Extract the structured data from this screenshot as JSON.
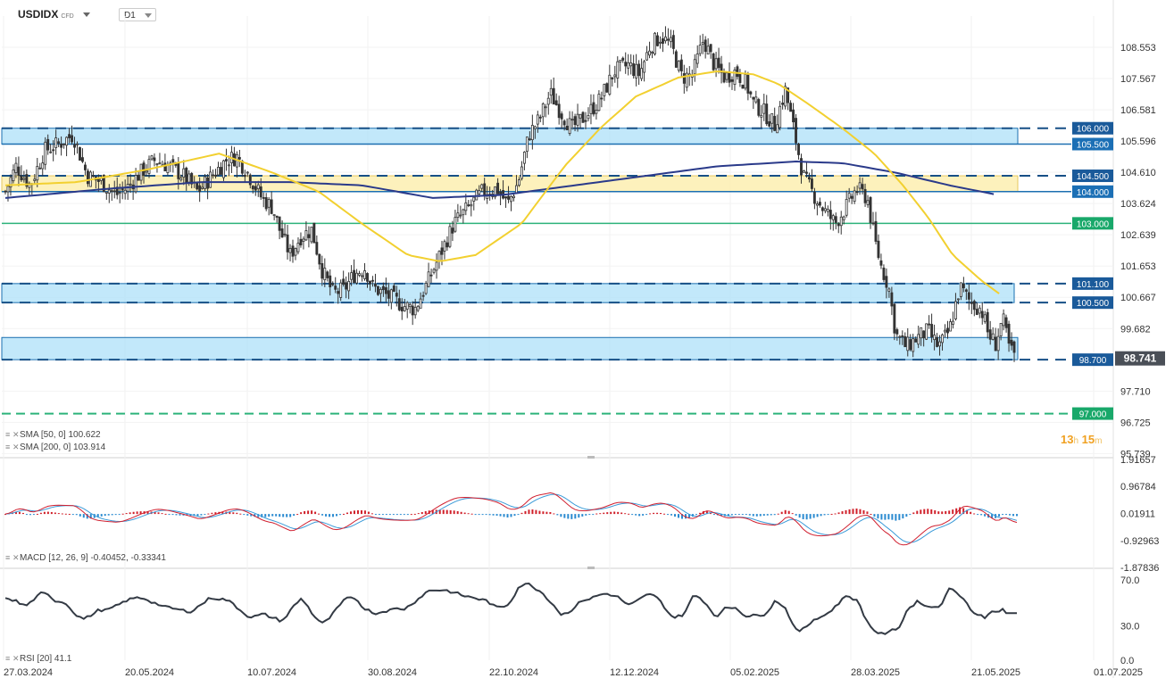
{
  "header": {
    "symbol": "USDIDX",
    "symbol_tag": "CFD",
    "timeframe": "D1"
  },
  "indicators": {
    "sma50_label": "SMA [50, 0] 100.622",
    "sma200_label": "SMA [200, 0] 103.914",
    "macd_label": "MACD [12, 26, 9] -0.40452, -0.33341",
    "rsi_label": "RSI [20] 41.1"
  },
  "timer": {
    "hours": "13",
    "h": "h",
    "minutes": "15",
    "m": "m"
  },
  "colors": {
    "up": "#ffffff",
    "down": "#333333",
    "zone_blue_fill": "#aee0f8",
    "zone_blue_stroke": "#1a6fb0",
    "zone_yellow_fill": "#fdeeb0",
    "sma50": "#f2d030",
    "sma200": "#2a3a8a",
    "green_level": "#2db37b",
    "dark_blue_label": "#1a5a9a",
    "macd_pos": "#d0202a",
    "macd_neg": "#2a8ad0",
    "rsi_line": "#333a44"
  },
  "chart_data": {
    "type": "candlestick",
    "symbol": "USDIDX",
    "timeframe": "D1",
    "price_axis_ticks": [
      "108.553",
      "107.567",
      "106.581",
      "105.596",
      "104.610",
      "103.624",
      "102.639",
      "101.653",
      "100.667",
      "99.682",
      "97.710",
      "96.725",
      "95.739"
    ],
    "date_axis_ticks": [
      "27.03.2024",
      "20.05.2024",
      "10.07.2024",
      "30.08.2024",
      "22.10.2024",
      "12.12.2024",
      "05.02.2025",
      "28.03.2025",
      "21.05.2025",
      "01.07.2025"
    ],
    "current_price": "98.741",
    "ylim": [
      95.739,
      109.4
    ],
    "zones": [
      {
        "from": 105.5,
        "to": 106.0,
        "color": "blue"
      },
      {
        "from": 104.0,
        "to": 104.5,
        "color": "yellow"
      },
      {
        "from": 100.5,
        "to": 101.1,
        "color": "blue"
      },
      {
        "from": 98.7,
        "to": 99.4,
        "color": "blue"
      }
    ],
    "levels": [
      {
        "value": 106.0,
        "label": "106.000",
        "style": "dashed",
        "color": "darkblue"
      },
      {
        "value": 105.5,
        "label": "105.500",
        "style": "solid",
        "color": "blue"
      },
      {
        "value": 104.5,
        "label": "104.500",
        "style": "dashed",
        "color": "darkblue"
      },
      {
        "value": 104.0,
        "label": "104.000",
        "style": "solid",
        "color": "blue"
      },
      {
        "value": 103.0,
        "label": "103.000",
        "style": "solid",
        "color": "green"
      },
      {
        "value": 101.1,
        "label": "101.100",
        "style": "dashed",
        "color": "darkblue"
      },
      {
        "value": 100.5,
        "label": "100.500",
        "style": "dashed",
        "color": "darkblue"
      },
      {
        "value": 98.7,
        "label": "98.700",
        "style": "dashed",
        "color": "darkblue"
      },
      {
        "value": 97.0,
        "label": "97.000",
        "style": "dashed",
        "color": "green"
      }
    ],
    "close_path": [
      [
        0,
        104.0
      ],
      [
        6,
        104.8
      ],
      [
        14,
        104.2
      ],
      [
        22,
        105.3
      ],
      [
        30,
        105.5
      ],
      [
        38,
        105.8
      ],
      [
        46,
        104.5
      ],
      [
        54,
        104.3
      ],
      [
        62,
        103.9
      ],
      [
        68,
        104.1
      ],
      [
        76,
        104.6
      ],
      [
        84,
        105.0
      ],
      [
        92,
        104.8
      ],
      [
        100,
        104.5
      ],
      [
        108,
        104.0
      ],
      [
        116,
        104.5
      ],
      [
        124,
        105.0
      ],
      [
        130,
        105.1
      ],
      [
        136,
        104.6
      ],
      [
        144,
        103.8
      ],
      [
        150,
        103.5
      ],
      [
        154,
        102.8
      ],
      [
        160,
        102.0
      ],
      [
        166,
        102.6
      ],
      [
        172,
        102.8
      ],
      [
        178,
        101.5
      ],
      [
        184,
        100.8
      ],
      [
        190,
        100.9
      ],
      [
        196,
        101.4
      ],
      [
        202,
        101.6
      ],
      [
        206,
        101.0
      ],
      [
        212,
        100.8
      ],
      [
        218,
        100.6
      ],
      [
        224,
        100.4
      ],
      [
        230,
        100.3
      ],
      [
        236,
        101.0
      ],
      [
        244,
        102.0
      ],
      [
        252,
        103.0
      ],
      [
        260,
        103.5
      ],
      [
        268,
        104.0
      ],
      [
        276,
        104.1
      ],
      [
        282,
        103.6
      ],
      [
        288,
        104.3
      ],
      [
        294,
        105.8
      ],
      [
        300,
        106.3
      ],
      [
        306,
        107.1
      ],
      [
        312,
        106.5
      ],
      [
        318,
        106.0
      ],
      [
        326,
        106.4
      ],
      [
        334,
        106.9
      ],
      [
        342,
        107.8
      ],
      [
        350,
        108.0
      ],
      [
        356,
        107.7
      ],
      [
        362,
        108.6
      ],
      [
        368,
        108.9
      ],
      [
        374,
        108.6
      ],
      [
        380,
        107.6
      ],
      [
        386,
        107.7
      ],
      [
        392,
        108.8
      ],
      [
        398,
        108.0
      ],
      [
        404,
        107.6
      ],
      [
        410,
        107.8
      ],
      [
        416,
        107.4
      ],
      [
        420,
        106.8
      ],
      [
        426,
        106.5
      ],
      [
        432,
        106.1
      ],
      [
        438,
        107.2
      ],
      [
        444,
        105.6
      ],
      [
        448,
        104.5
      ],
      [
        454,
        103.9
      ],
      [
        460,
        103.4
      ],
      [
        466,
        103.0
      ],
      [
        472,
        103.5
      ],
      [
        478,
        104.1
      ],
      [
        484,
        103.8
      ],
      [
        488,
        102.5
      ],
      [
        492,
        101.6
      ],
      [
        496,
        101.0
      ],
      [
        500,
        99.5
      ],
      [
        506,
        99.1
      ],
      [
        512,
        99.4
      ],
      [
        518,
        99.6
      ],
      [
        524,
        99.1
      ],
      [
        530,
        99.6
      ],
      [
        536,
        101.0
      ],
      [
        542,
        100.5
      ],
      [
        548,
        100.3
      ],
      [
        552,
        99.5
      ],
      [
        556,
        99.2
      ],
      [
        560,
        100.0
      ],
      [
        564,
        99.0
      ],
      [
        568,
        98.8
      ]
    ],
    "sma50": [
      [
        0,
        104.2
      ],
      [
        40,
        104.3
      ],
      [
        80,
        104.7
      ],
      [
        120,
        105.2
      ],
      [
        150,
        104.6
      ],
      [
        176,
        104.0
      ],
      [
        200,
        103.0
      ],
      [
        226,
        102.0
      ],
      [
        244,
        101.8
      ],
      [
        264,
        102.0
      ],
      [
        290,
        103.0
      ],
      [
        314,
        104.8
      ],
      [
        334,
        106.0
      ],
      [
        354,
        107.0
      ],
      [
        378,
        107.6
      ],
      [
        400,
        107.8
      ],
      [
        420,
        107.7
      ],
      [
        434,
        107.4
      ],
      [
        450,
        106.8
      ],
      [
        470,
        106.0
      ],
      [
        488,
        105.2
      ],
      [
        504,
        104.2
      ],
      [
        518,
        103.2
      ],
      [
        532,
        102.0
      ],
      [
        548,
        101.2
      ],
      [
        560,
        100.7
      ]
    ],
    "sma200": [
      [
        0,
        103.8
      ],
      [
        60,
        104.1
      ],
      [
        110,
        104.3
      ],
      [
        160,
        104.3
      ],
      [
        200,
        104.2
      ],
      [
        240,
        103.8
      ],
      [
        280,
        103.9
      ],
      [
        320,
        104.2
      ],
      [
        360,
        104.5
      ],
      [
        400,
        104.8
      ],
      [
        444,
        104.95
      ],
      [
        470,
        104.9
      ],
      [
        500,
        104.6
      ],
      [
        530,
        104.2
      ],
      [
        556,
        103.91
      ]
    ],
    "macd": {
      "range": [
        -1.87836,
        1.91657
      ],
      "ticks": [
        "1.91657",
        "0.96784",
        "0.01911",
        "-0.92963",
        "-1.87836"
      ],
      "label": "MACD [12, 26, 9] -0.40452, -0.33341",
      "last_macd": -0.40452,
      "last_signal": -0.33341
    },
    "rsi": {
      "range": [
        0,
        70
      ],
      "ticks": [
        "70.0",
        "30.0",
        "0.0"
      ],
      "label": "RSI [20] 41.1",
      "last": 41.1
    }
  }
}
